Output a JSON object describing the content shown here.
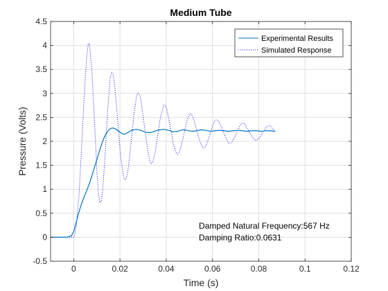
{
  "chart_data": {
    "type": "line",
    "title": "Medium Tube",
    "xlabel": "Time (s)",
    "ylabel": "Pressure (Volts)",
    "xlim": [
      -0.01,
      0.12
    ],
    "ylim": [
      -0.5,
      4.5
    ],
    "xticks": [
      0,
      0.02,
      0.04,
      0.06,
      0.08,
      0.1,
      0.12
    ],
    "xtick_labels": [
      "0",
      "0.02",
      "0.04",
      "0.06",
      "0.08",
      "0.1",
      "0.12"
    ],
    "yticks": [
      -0.5,
      0,
      0.5,
      1,
      1.5,
      2,
      2.5,
      3,
      3.5,
      4,
      4.5
    ],
    "ytick_labels": [
      "-0.5",
      "0",
      "0.5",
      "1",
      "1.5",
      "2",
      "2.5",
      "3",
      "3.5",
      "4",
      "4.5"
    ],
    "grid": true,
    "legend_location": "top-right",
    "series": [
      {
        "name": "Experimental Results",
        "color": "#0072BD",
        "style": "solid",
        "x": [
          -0.01,
          -0.006,
          -0.003,
          -0.001,
          0.0,
          0.001,
          0.002,
          0.003,
          0.004,
          0.005,
          0.006,
          0.007,
          0.008,
          0.009,
          0.01,
          0.011,
          0.012,
          0.013,
          0.014,
          0.015,
          0.016,
          0.017,
          0.018,
          0.019,
          0.02,
          0.021,
          0.022,
          0.023,
          0.024,
          0.025,
          0.027,
          0.029,
          0.031,
          0.033,
          0.035,
          0.037,
          0.039,
          0.041,
          0.043,
          0.045,
          0.047,
          0.049,
          0.051,
          0.053,
          0.055,
          0.057,
          0.059,
          0.061,
          0.063,
          0.065,
          0.067,
          0.069,
          0.071,
          0.073,
          0.075,
          0.077,
          0.079,
          0.081,
          0.083,
          0.085,
          0.087
        ],
        "y": [
          0.0,
          0.0,
          0.0,
          0.03,
          0.12,
          0.3,
          0.48,
          0.64,
          0.78,
          0.9,
          1.02,
          1.15,
          1.3,
          1.46,
          1.62,
          1.78,
          1.93,
          2.06,
          2.16,
          2.23,
          2.27,
          2.28,
          2.26,
          2.23,
          2.19,
          2.16,
          2.15,
          2.17,
          2.2,
          2.23,
          2.25,
          2.23,
          2.19,
          2.18,
          2.21,
          2.24,
          2.25,
          2.23,
          2.2,
          2.21,
          2.24,
          2.23,
          2.21,
          2.22,
          2.24,
          2.23,
          2.21,
          2.22,
          2.23,
          2.22,
          2.21,
          2.22,
          2.23,
          2.22,
          2.21,
          2.22,
          2.22,
          2.21,
          2.22,
          2.22,
          2.21
        ]
      },
      {
        "name": "Simulated Response",
        "color": "#0000FF",
        "style": "dotted",
        "x": [
          -0.01,
          -0.004,
          0.0,
          0.0005,
          0.0011,
          0.0023,
          0.0034,
          0.0045,
          0.0051,
          0.0057,
          0.0063,
          0.0068,
          0.0079,
          0.009,
          0.0101,
          0.0107,
          0.0113,
          0.0119,
          0.0125,
          0.0136,
          0.0147,
          0.0158,
          0.0164,
          0.017,
          0.0176,
          0.0182,
          0.0193,
          0.0204,
          0.0215,
          0.0221,
          0.0227,
          0.0233,
          0.0238,
          0.025,
          0.0261,
          0.0272,
          0.0278,
          0.0284,
          0.029,
          0.0295,
          0.0306,
          0.0318,
          0.0329,
          0.0334,
          0.034,
          0.0346,
          0.0352,
          0.0363,
          0.0374,
          0.0386,
          0.0391,
          0.0397,
          0.0403,
          0.0408,
          0.042,
          0.0431,
          0.0442,
          0.0448,
          0.0454,
          0.0459,
          0.0465,
          0.0476,
          0.0488,
          0.0499,
          0.0505,
          0.051,
          0.0516,
          0.0522,
          0.0533,
          0.0544,
          0.0556,
          0.0561,
          0.0567,
          0.0573,
          0.0578,
          0.059,
          0.0601,
          0.0612,
          0.0618,
          0.0624,
          0.0629,
          0.0635,
          0.0646,
          0.0658,
          0.0669,
          0.0675,
          0.068,
          0.0686,
          0.0691,
          0.0703,
          0.0714,
          0.0725,
          0.0731,
          0.0737,
          0.0743,
          0.0748,
          0.0759,
          0.0771,
          0.0782,
          0.0788,
          0.0793,
          0.0799,
          0.0805,
          0.0816,
          0.0827,
          0.0839,
          0.0844,
          0.085,
          0.0856,
          0.0861,
          0.087
        ],
        "y": [
          0.0,
          0.0,
          0.0,
          0.06,
          0.23,
          0.89,
          1.84,
          2.9,
          3.39,
          3.8,
          4.04,
          4.03,
          3.44,
          2.4,
          1.32,
          0.9,
          0.72,
          0.75,
          0.97,
          1.73,
          2.67,
          3.32,
          3.44,
          3.4,
          3.22,
          2.91,
          2.25,
          1.64,
          1.27,
          1.2,
          1.23,
          1.35,
          1.53,
          2.05,
          2.59,
          2.95,
          3.01,
          2.98,
          2.87,
          2.69,
          2.3,
          1.88,
          1.58,
          1.53,
          1.55,
          1.64,
          1.77,
          2.11,
          2.48,
          2.7,
          2.76,
          2.74,
          2.66,
          2.54,
          2.24,
          1.95,
          1.77,
          1.73,
          1.75,
          1.82,
          1.91,
          2.14,
          2.41,
          2.55,
          2.58,
          2.55,
          2.49,
          2.41,
          2.21,
          2.02,
          1.88,
          1.86,
          1.88,
          1.92,
          1.99,
          2.15,
          2.34,
          2.44,
          2.45,
          2.43,
          2.4,
          2.34,
          2.2,
          2.07,
          1.97,
          1.96,
          1.97,
          2.0,
          2.05,
          2.16,
          2.29,
          2.37,
          2.38,
          2.37,
          2.33,
          2.29,
          2.19,
          2.1,
          2.03,
          2.02,
          2.03,
          2.05,
          2.09,
          2.17,
          2.26,
          2.32,
          2.33,
          2.32,
          2.29,
          2.26,
          2.2
        ]
      }
    ],
    "annotations": [
      "Damped Natural Frequency:567 Hz",
      "Damping Ratio:0.0631"
    ]
  }
}
